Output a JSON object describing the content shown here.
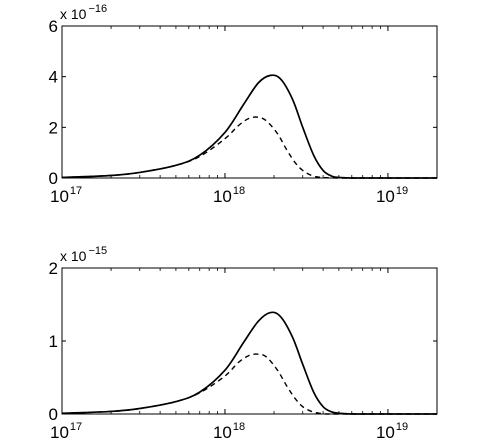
{
  "chart_data": [
    {
      "type": "line",
      "xscale": "log",
      "xlim": [
        1e+17,
        2e+19
      ],
      "ylim": [
        0,
        6
      ],
      "y_multiplier": {
        "base": "x 10",
        "exponent": "−16"
      },
      "yticks": [
        {
          "value": 0,
          "label": "0"
        },
        {
          "value": 2,
          "label": "2"
        },
        {
          "value": 4,
          "label": "4"
        },
        {
          "value": 6,
          "label": "6"
        }
      ],
      "xticks": [
        {
          "value": 1e+17,
          "base": "10",
          "exponent": "17"
        },
        {
          "value": 1e+18,
          "base": "10",
          "exponent": "18"
        },
        {
          "value": 1e+19,
          "base": "10",
          "exponent": "19"
        }
      ],
      "grid": false,
      "series": [
        {
          "style": "solid",
          "x": [
            1e+17,
            2e+17,
            3e+17,
            5e+17,
            7e+17,
            1e+18,
            1.3e+18,
            1.6e+18,
            1.9e+18,
            2.2e+18,
            2.6e+18,
            3e+18,
            3.5e+18,
            4e+18,
            4.5e+18,
            5e+18,
            6e+18,
            7e+18,
            1e+19,
            2e+19
          ],
          "values": [
            0.02,
            0.1,
            0.22,
            0.5,
            0.9,
            1.8,
            2.9,
            3.75,
            4.05,
            3.9,
            3.1,
            2.0,
            0.9,
            0.3,
            0.08,
            0.02,
            0,
            0,
            0,
            0
          ]
        },
        {
          "style": "dashed",
          "x": [
            1e+17,
            2e+17,
            3e+17,
            5e+17,
            7e+17,
            1e+18,
            1.2e+18,
            1.4e+18,
            1.6e+18,
            1.8e+18,
            2.1e+18,
            2.4e+18,
            2.7e+18,
            3e+18,
            3.4e+18,
            3.8e+18,
            4.2e+18,
            5e+18,
            1e+19,
            2e+19
          ],
          "values": [
            0.02,
            0.1,
            0.22,
            0.5,
            0.85,
            1.55,
            2.05,
            2.35,
            2.4,
            2.25,
            1.75,
            1.1,
            0.6,
            0.3,
            0.1,
            0.03,
            0.01,
            0,
            0,
            0
          ]
        }
      ]
    },
    {
      "type": "line",
      "xscale": "log",
      "xlim": [
        1e+17,
        2e+19
      ],
      "ylim": [
        0,
        2
      ],
      "y_multiplier": {
        "base": "x 10",
        "exponent": "−15"
      },
      "yticks": [
        {
          "value": 0,
          "label": "0"
        },
        {
          "value": 1,
          "label": "1"
        },
        {
          "value": 2,
          "label": "2"
        }
      ],
      "xticks": [
        {
          "value": 1e+17,
          "base": "10",
          "exponent": "17"
        },
        {
          "value": 1e+18,
          "base": "10",
          "exponent": "18"
        },
        {
          "value": 1e+19,
          "base": "10",
          "exponent": "19"
        }
      ],
      "grid": false,
      "series": [
        {
          "style": "solid",
          "x": [
            1e+17,
            2e+17,
            3e+17,
            5e+17,
            7e+17,
            1e+18,
            1.3e+18,
            1.6e+18,
            1.9e+18,
            2.2e+18,
            2.6e+18,
            3e+18,
            3.5e+18,
            4e+18,
            4.5e+18,
            5e+18,
            6e+18,
            7e+18,
            1e+19,
            2e+19
          ],
          "values": [
            0.01,
            0.035,
            0.075,
            0.17,
            0.3,
            0.6,
            0.98,
            1.27,
            1.39,
            1.33,
            1.05,
            0.68,
            0.3,
            0.1,
            0.03,
            0.01,
            0,
            0,
            0,
            0
          ]
        },
        {
          "style": "dashed",
          "x": [
            1e+17,
            2e+17,
            3e+17,
            5e+17,
            7e+17,
            1e+18,
            1.2e+18,
            1.4e+18,
            1.6e+18,
            1.8e+18,
            2.1e+18,
            2.4e+18,
            2.7e+18,
            3e+18,
            3.4e+18,
            3.8e+18,
            4.2e+18,
            5e+18,
            1e+19,
            2e+19
          ],
          "values": [
            0.01,
            0.035,
            0.075,
            0.17,
            0.29,
            0.52,
            0.7,
            0.8,
            0.82,
            0.78,
            0.6,
            0.38,
            0.21,
            0.1,
            0.035,
            0.01,
            0,
            0,
            0,
            0
          ]
        }
      ]
    }
  ]
}
